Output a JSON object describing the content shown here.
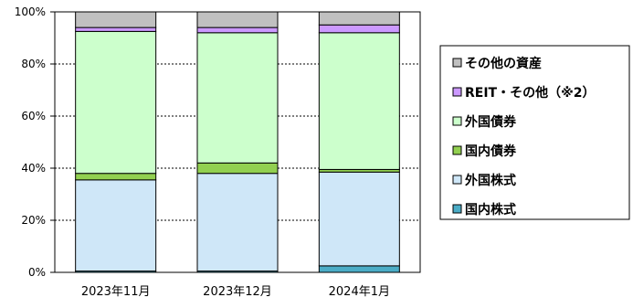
{
  "chart_data": {
    "type": "bar",
    "stacked": true,
    "categories": [
      "2023年11月",
      "2023年12月",
      "2024年1月"
    ],
    "ylim": [
      0,
      100
    ],
    "yticks": [
      "0%",
      "20%",
      "40%",
      "60%",
      "80%",
      "100%"
    ],
    "grid": true,
    "legend_position": "right",
    "series": [
      {
        "name": "国内株式",
        "color": "#4BACC6",
        "values": [
          0.5,
          0.5,
          2.5
        ]
      },
      {
        "name": "外国株式",
        "color": "#CFE7F8",
        "values": [
          35,
          37.5,
          36
        ]
      },
      {
        "name": "国内債券",
        "color": "#92D050",
        "values": [
          2.5,
          4,
          1
        ]
      },
      {
        "name": "外国債券",
        "color": "#CCFFCC",
        "values": [
          54.5,
          50,
          52.5
        ]
      },
      {
        "name": "REIT・その他（※2）",
        "color": "#CC99FF",
        "values": [
          1.5,
          2,
          3
        ]
      },
      {
        "name": "その他の資産",
        "color": "#C0C0C0",
        "values": [
          6,
          6,
          5
        ]
      }
    ],
    "legend_order": [
      5,
      4,
      3,
      2,
      1,
      0
    ]
  }
}
